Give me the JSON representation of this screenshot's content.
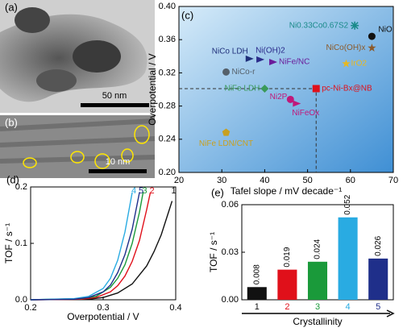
{
  "images": [
    {
      "label": "(a)",
      "scale_bar": "50 nm"
    },
    {
      "label": "(b)",
      "scale_bar": "10 nm"
    }
  ],
  "chart_data": [
    {
      "type": "scatter",
      "panel": "(c)",
      "x_label": "Tafel slope / mV decade⁻¹",
      "y_label": "Overpotential / V",
      "xlim": [
        20,
        70
      ],
      "xticks": [
        20,
        30,
        40,
        50,
        60,
        70
      ],
      "ylim": [
        0.2,
        0.4
      ],
      "yticks": [
        {
          "value": 0.2,
          "label": "0.20"
        },
        0.24,
        0.28,
        0.32,
        0.36,
        {
          "value": 0.4,
          "label": "0.40"
        }
      ],
      "series": [
        {
          "name": "NiO",
          "color": "#111111",
          "marker": "circle",
          "x": [
            65
          ],
          "values": [
            0.364
          ]
        },
        {
          "name": "Ni0.33Co0.67S2",
          "color": "#1a8a8a",
          "marker": "asterisk",
          "x": [
            61
          ],
          "values": [
            0.377
          ]
        },
        {
          "name": "NiCo(OH)x",
          "color": "#8b5a2b",
          "marker": "star",
          "x": [
            65
          ],
          "values": [
            0.35
          ]
        },
        {
          "name": "NiCo LDH",
          "color": "#1f2f7a",
          "marker": "triangle",
          "x": [
            36.5
          ],
          "values": [
            0.337
          ]
        },
        {
          "name": "Ni(OH)2",
          "color": "#2b2b8a",
          "marker": "triangle",
          "x": [
            39
          ],
          "values": [
            0.336
          ]
        },
        {
          "name": "NiFe/NC",
          "color": "#6a1b9a",
          "marker": "triangle",
          "x": [
            42
          ],
          "values": [
            0.333
          ]
        },
        {
          "name": "IrO2",
          "color": "#e8b820",
          "marker": "star",
          "x": [
            59
          ],
          "values": [
            0.331
          ]
        },
        {
          "name": "NiCo-r",
          "color": "#55606a",
          "marker": "circle",
          "x": [
            31
          ],
          "values": [
            0.321
          ]
        },
        {
          "name": "NiFe LDH",
          "color": "#3a9a5a",
          "marker": "diamond",
          "x": [
            40
          ],
          "values": [
            0.301
          ]
        },
        {
          "name": "pc-Ni-Bx@NB",
          "color": "#e0101a",
          "marker": "square",
          "x": [
            52
          ],
          "values": [
            0.301
          ]
        },
        {
          "name": "Ni2P",
          "color": "#c0187a",
          "marker": "circle",
          "x": [
            46
          ],
          "values": [
            0.288
          ]
        },
        {
          "name": "NiFeOx",
          "color": "#c0187a",
          "marker": "triangle",
          "x": [
            47.5
          ],
          "values": [
            0.283
          ]
        },
        {
          "name": "NiFe LDN/CNT",
          "color": "#c8a020",
          "marker": "pentagon",
          "x": [
            31
          ],
          "values": [
            0.248
          ]
        }
      ]
    },
    {
      "type": "line",
      "panel": "(d)",
      "x_label": "Overpotential / V",
      "y_label": "TOF / s⁻¹",
      "xlim": [
        0.2,
        0.4
      ],
      "xticks": [
        0.2,
        0.3,
        0.4
      ],
      "ylim": [
        0,
        0.2
      ],
      "yticks": [
        {
          "value": 0,
          "label": "0.0"
        },
        0.1,
        0.2
      ],
      "series": [
        {
          "name": "1",
          "color": "#111111",
          "x": [
            0.2,
            0.28,
            0.3,
            0.32,
            0.34,
            0.36,
            0.37,
            0.38,
            0.39,
            0.395
          ],
          "values": [
            0,
            0.001,
            0.004,
            0.012,
            0.028,
            0.06,
            0.085,
            0.115,
            0.155,
            0.175
          ]
        },
        {
          "name": "2",
          "color": "#e0101a",
          "x": [
            0.2,
            0.27,
            0.29,
            0.31,
            0.32,
            0.33,
            0.34,
            0.35,
            0.36,
            0.365
          ],
          "values": [
            0,
            0.001,
            0.004,
            0.014,
            0.025,
            0.042,
            0.068,
            0.105,
            0.16,
            0.19
          ]
        },
        {
          "name": "3",
          "color": "#1a9a3a",
          "x": [
            0.2,
            0.27,
            0.29,
            0.31,
            0.32,
            0.33,
            0.34,
            0.35,
            0.355
          ],
          "values": [
            0,
            0.002,
            0.006,
            0.022,
            0.038,
            0.062,
            0.1,
            0.155,
            0.19
          ]
        },
        {
          "name": "4",
          "color": "#29abe2",
          "x": [
            0.2,
            0.26,
            0.28,
            0.3,
            0.31,
            0.32,
            0.33,
            0.34
          ],
          "values": [
            0,
            0.002,
            0.006,
            0.02,
            0.038,
            0.07,
            0.12,
            0.19
          ]
        },
        {
          "name": "5",
          "color": "#1f2f8a",
          "x": [
            0.2,
            0.26,
            0.28,
            0.3,
            0.31,
            0.32,
            0.33,
            0.34,
            0.35
          ],
          "values": [
            0,
            0.001,
            0.004,
            0.014,
            0.026,
            0.048,
            0.08,
            0.125,
            0.19
          ]
        }
      ]
    },
    {
      "type": "bar",
      "panel": "(e)",
      "x_label": "Crystallinity",
      "y_label": "TOF / s⁻¹",
      "categories": [
        "1",
        "2",
        "3",
        "4",
        "5"
      ],
      "values": [
        0.008,
        0.019,
        0.024,
        0.052,
        0.026
      ],
      "colors": [
        "#111111",
        "#e0101a",
        "#1a9a3a",
        "#29abe2",
        "#1f2f8a"
      ],
      "ylim": [
        0,
        0.06
      ],
      "yticks": [
        {
          "value": 0,
          "label": "0.00"
        },
        0.03,
        0.06
      ]
    }
  ]
}
